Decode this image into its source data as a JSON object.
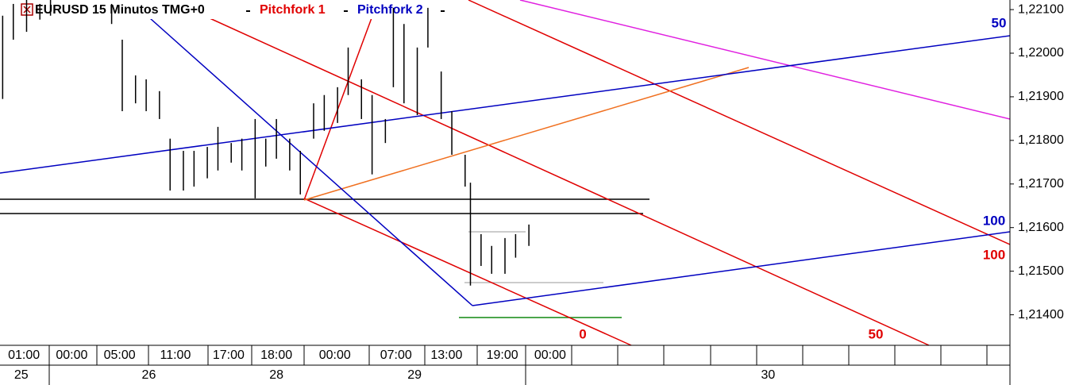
{
  "chart_data": {
    "type": "ohlc",
    "title": "EURUSD 15 Minutos TMG+0",
    "studies": [
      {
        "name": "Pitchfork 1",
        "color": "#e00000"
      },
      {
        "name": "Pitchfork 2",
        "color": "#0000c0"
      }
    ],
    "color": "#000000",
    "x": [
      1,
      5,
      10,
      15,
      19,
      42,
      46,
      51,
      55,
      60,
      64,
      69,
      73,
      78,
      82,
      87,
      91,
      96,
      100,
      104,
      109,
      113,
      118,
      122,
      127,
      131,
      136,
      140,
      145,
      148,
      152,
      157,
      161,
      166,
      170,
      175,
      177,
      181,
      185,
      190,
      194,
      199
    ],
    "high": [
      1.22086,
      1.22113,
      1.22122,
      1.22113,
      1.22122,
      1.22113,
      1.22031,
      1.21949,
      1.2194,
      1.21913,
      1.21804,
      1.21776,
      1.21776,
      1.21785,
      1.21831,
      1.21794,
      1.21804,
      1.21849,
      1.21804,
      1.21849,
      1.21804,
      1.21776,
      1.21885,
      1.21904,
      1.21922,
      1.22013,
      1.2194,
      1.21904,
      1.21849,
      1.22104,
      1.22067,
      1.22013,
      1.22104,
      1.21958,
      1.21867,
      1.21767,
      1.21703,
      1.21585,
      1.21558,
      1.21576,
      1.21585,
      1.21607
    ],
    "low": [
      1.21895,
      1.22031,
      1.22049,
      1.22077,
      1.22086,
      1.22067,
      1.21867,
      1.21885,
      1.21867,
      1.21849,
      1.21685,
      1.21685,
      1.21694,
      1.21713,
      1.21731,
      1.21749,
      1.21731,
      1.21667,
      1.2174,
      1.21758,
      1.21731,
      1.21676,
      1.21804,
      1.21822,
      1.2184,
      1.21904,
      1.21849,
      1.21722,
      1.21794,
      1.21922,
      1.21885,
      1.21858,
      1.22013,
      1.21849,
      1.21767,
      1.21694,
      1.21467,
      1.21512,
      1.21494,
      1.21494,
      1.21531,
      1.21558
    ],
    "xlim": [
      0,
      380
    ],
    "ylim": [
      1.2133,
      1.22122
    ],
    "yticks": [
      {
        "value": 1.214,
        "label": "1,21400"
      },
      {
        "value": 1.215,
        "label": "1,21500"
      },
      {
        "value": 1.216,
        "label": "1,21600"
      },
      {
        "value": 1.217,
        "label": "1,21700"
      },
      {
        "value": 1.218,
        "label": "1,21800"
      },
      {
        "value": 1.219,
        "label": "1,21900"
      },
      {
        "value": 1.22,
        "label": "1,22000"
      },
      {
        "value": 1.221,
        "label": "1,22100"
      }
    ],
    "xticks": [
      {
        "value": 9,
        "label": "01:00"
      },
      {
        "value": 27,
        "label": "00:00"
      },
      {
        "value": 45,
        "label": "05:00"
      },
      {
        "value": 66,
        "label": "11:00"
      },
      {
        "value": 86,
        "label": "17:00"
      },
      {
        "value": 104,
        "label": "18:00"
      },
      {
        "value": 126,
        "label": "00:00"
      },
      {
        "value": 149,
        "label": "07:00"
      },
      {
        "value": 168,
        "label": "13:00"
      },
      {
        "value": 189,
        "label": "19:00"
      },
      {
        "value": 207,
        "label": "00:00"
      }
    ],
    "dates": [
      {
        "value": 8,
        "label": "25"
      },
      {
        "value": 56,
        "label": "26"
      },
      {
        "value": 104,
        "label": "28"
      },
      {
        "value": 156,
        "label": "29"
      },
      {
        "value": 289,
        "label": "30"
      }
    ],
    "annotations": [
      {
        "text": "50",
        "color": "#0000c0"
      },
      {
        "text": "100",
        "color": "#0000c0"
      },
      {
        "text": "100",
        "color": "#e00000"
      },
      {
        "text": "0",
        "color": "#e00000"
      },
      {
        "text": "50",
        "color": "#e00000"
      }
    ]
  }
}
